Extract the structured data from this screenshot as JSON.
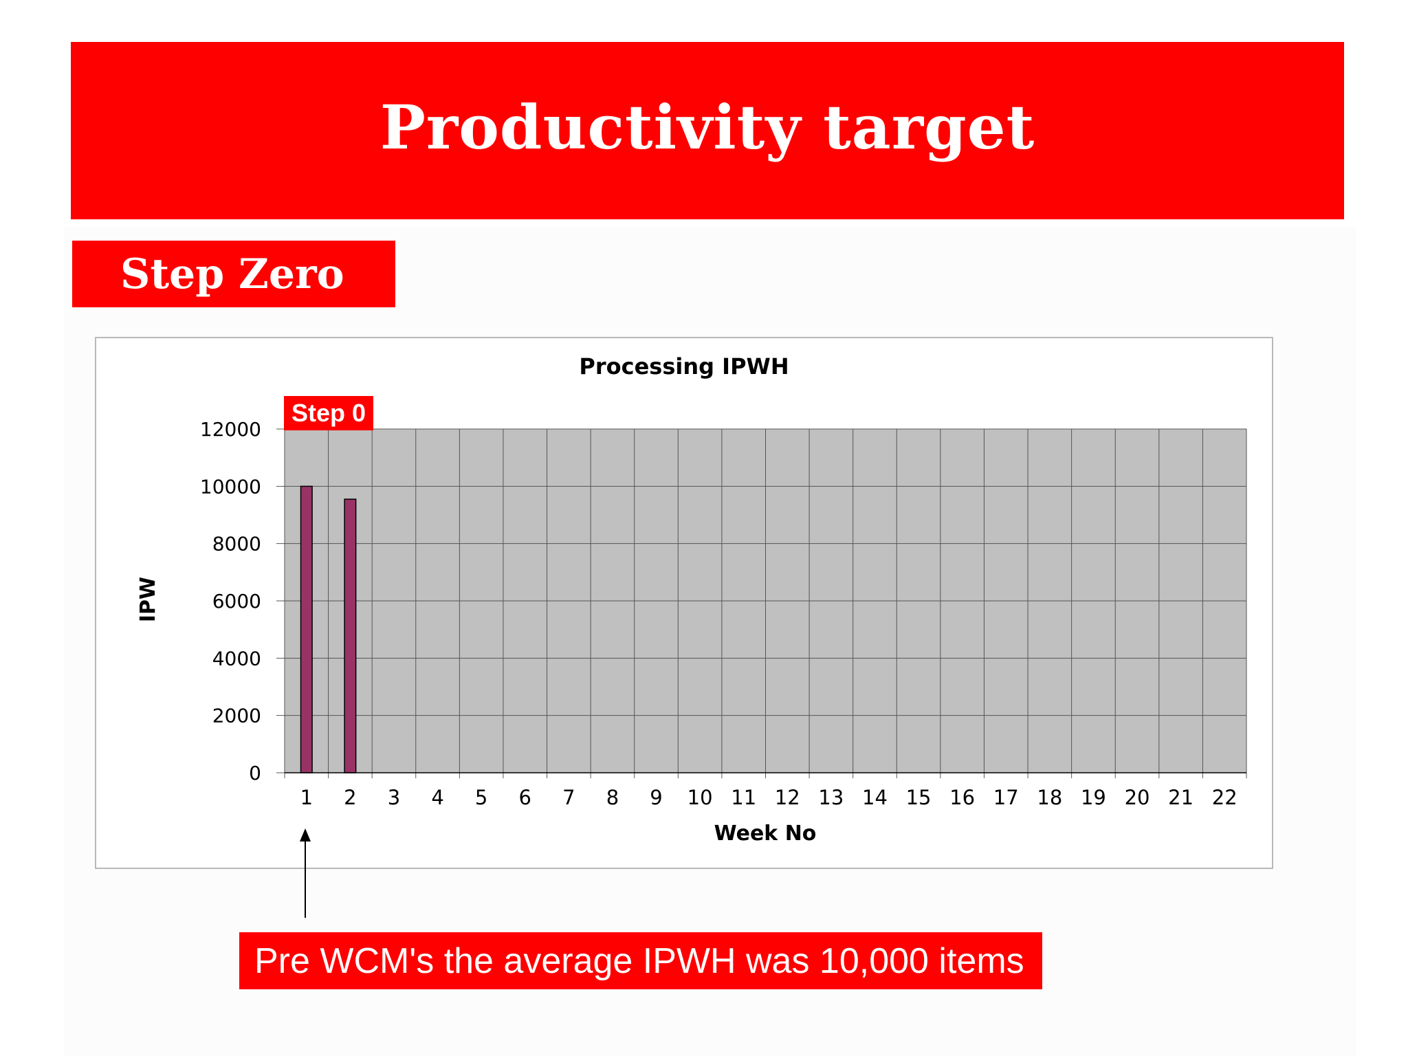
{
  "slide": {
    "title": "Productivity target",
    "subtitle": "Step Zero",
    "note": "Pre WCM's the average IPWH was 10,000 items",
    "accent_color": "#fe0000"
  },
  "chart_data": {
    "type": "bar",
    "title": "Processing IPWH",
    "xlabel": "Week No",
    "ylabel": "IPW",
    "categories": [
      "1",
      "2",
      "3",
      "4",
      "5",
      "6",
      "7",
      "8",
      "9",
      "10",
      "11",
      "12",
      "13",
      "14",
      "15",
      "16",
      "17",
      "18",
      "19",
      "20",
      "21",
      "22"
    ],
    "series": [
      {
        "values": [
          10000,
          9550,
          null,
          null,
          null,
          null,
          null,
          null,
          null,
          null,
          null,
          null,
          null,
          null,
          null,
          null,
          null,
          null,
          null,
          null,
          null,
          null
        ],
        "color": "#993366"
      }
    ],
    "ylim": [
      0,
      12000
    ],
    "yticks": [
      0,
      2000,
      4000,
      6000,
      8000,
      10000,
      12000
    ],
    "grid": true,
    "plot_background": "#c0c0c0",
    "annotation": {
      "text": "Step 0",
      "color": "#fe0000"
    }
  }
}
